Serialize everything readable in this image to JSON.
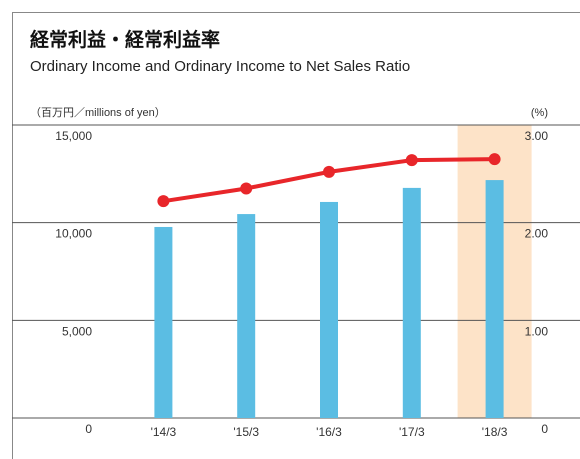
{
  "chart_data": {
    "type": "bar-line",
    "title": "経常利益・経常利益率",
    "subtitle": "Ordinary Income and Ordinary Income to Net Sales Ratio",
    "y_label": "（百万円／millions of yen）",
    "y2_label": "(%)",
    "categories": [
      "'14/3",
      "'15/3",
      "'16/3",
      "'17/3",
      "'18/3"
    ],
    "series": [
      {
        "type": "bar",
        "color": "#5bbde3",
        "values": [
          9780,
          10440,
          11060,
          11780,
          12180
        ]
      },
      {
        "type": "line",
        "axis": "y2",
        "color": "#e8262a",
        "values": [
          2.22,
          2.35,
          2.52,
          2.64,
          2.65
        ]
      }
    ],
    "ylim": [
      0,
      15000
    ],
    "yticks": [
      0,
      {
        "value": 5000,
        "label": "5,000"
      },
      {
        "value": 10000,
        "label": "10,000"
      },
      {
        "value": 15000,
        "label": "15,000"
      }
    ],
    "y2lim": [
      0,
      3
    ],
    "y2ticks": [
      0,
      {
        "value": 1,
        "label": "1.00"
      },
      {
        "value": 2,
        "label": "2.00"
      },
      {
        "value": 3,
        "label": "3.00"
      }
    ],
    "grid": true,
    "highlight_color": "#fde3c8"
  }
}
